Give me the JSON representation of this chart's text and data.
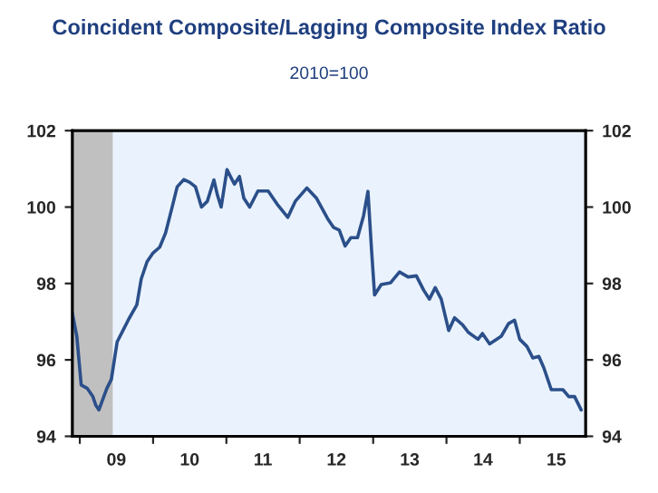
{
  "chart_data": {
    "type": "line",
    "title": "Coincident Composite/Lagging Composite Index Ratio",
    "subtitle": "2010=100",
    "series": [
      {
        "color": "#2b4f8a",
        "x": [
          "2008-11-25",
          "2008-12-17",
          "2009-01-08",
          "2009-02-06",
          "2009-03-07",
          "2009-03-22",
          "2009-04-06",
          "2009-04-20",
          "2009-05-16",
          "2009-06-07",
          "2009-07-06",
          "2009-08-04",
          "2009-09-02",
          "2009-10-12",
          "2009-11-03",
          "2009-12-02",
          "2010-01-01",
          "2010-02-03",
          "2010-03-04",
          "2010-04-02",
          "2010-05-01",
          "2010-06-03",
          "2010-07-02",
          "2010-07-31",
          "2010-08-30",
          "2010-09-28",
          "2010-10-31",
          "2010-11-18",
          "2010-12-06",
          "2011-01-04",
          "2011-01-26",
          "2011-02-10",
          "2011-03-07",
          "2011-03-29",
          "2011-04-27",
          "2011-06-07",
          "2011-07-28",
          "2011-09-10",
          "2011-11-03",
          "2011-12-10",
          "2012-02-06",
          "2012-03-25",
          "2012-05-19",
          "2012-06-17",
          "2012-07-16",
          "2012-08-14",
          "2012-09-12",
          "2012-10-15",
          "2012-11-14",
          "2012-12-06",
          "2012-12-24",
          "2013-01-08",
          "2013-02-10",
          "2013-03-29",
          "2013-05-12",
          "2013-06-24",
          "2013-08-04",
          "2013-09-10",
          "2013-10-08",
          "2013-11-06",
          "2013-12-06",
          "2014-01-12",
          "2014-02-10",
          "2014-03-22",
          "2014-04-20",
          "2014-06-07",
          "2014-06-29",
          "2014-08-04",
          "2014-10-01",
          "2014-11-06",
          "2014-12-06",
          "2015-01-01",
          "2015-02-06",
          "2015-03-07",
          "2015-04-06",
          "2015-05-01",
          "2015-06-07",
          "2015-08-04",
          "2015-09-02",
          "2015-10-01",
          "2015-11-03"
        ],
        "values": [
          97.22,
          96.62,
          95.34,
          95.26,
          95.04,
          94.81,
          94.69,
          94.89,
          95.26,
          95.49,
          96.47,
          96.77,
          97.07,
          97.44,
          98.12,
          98.57,
          98.8,
          98.95,
          99.32,
          99.92,
          100.53,
          100.72,
          100.65,
          100.53,
          100.0,
          100.15,
          100.71,
          100.3,
          100.0,
          100.98,
          100.75,
          100.6,
          100.8,
          100.23,
          100.0,
          100.42,
          100.42,
          100.08,
          99.73,
          100.15,
          100.5,
          100.23,
          99.7,
          99.47,
          99.4,
          98.98,
          99.2,
          99.2,
          99.77,
          100.41,
          98.87,
          97.7,
          97.97,
          98.02,
          98.3,
          98.17,
          98.2,
          97.82,
          97.59,
          97.89,
          97.59,
          96.77,
          97.1,
          96.92,
          96.72,
          96.54,
          96.69,
          96.42,
          96.62,
          96.95,
          97.04,
          96.54,
          96.35,
          96.05,
          96.09,
          95.79,
          95.22,
          95.22,
          95.04,
          95.04,
          94.69
        ]
      }
    ],
    "xlim": [
      "2008-11-25",
      "2015-11-25"
    ],
    "xticks": [
      {
        "value": "2009-01-01",
        "label": null
      },
      {
        "value": "2009-07-02",
        "label": "09"
      },
      {
        "value": "2010-01-01",
        "label": null
      },
      {
        "value": "2010-07-02",
        "label": "10"
      },
      {
        "value": "2011-01-01",
        "label": null
      },
      {
        "value": "2011-07-02",
        "label": "11"
      },
      {
        "value": "2012-01-01",
        "label": null
      },
      {
        "value": "2012-07-02",
        "label": "12"
      },
      {
        "value": "2013-01-01",
        "label": null
      },
      {
        "value": "2013-07-02",
        "label": "13"
      },
      {
        "value": "2014-01-01",
        "label": null
      },
      {
        "value": "2014-07-02",
        "label": "14"
      },
      {
        "value": "2015-01-01",
        "label": null
      },
      {
        "value": "2015-07-02",
        "label": "15"
      }
    ],
    "ylim": [
      94,
      102
    ],
    "yticks": [
      94,
      96,
      98,
      100,
      102
    ],
    "y2lim": [
      94,
      102
    ],
    "y2ticks": [
      94,
      96,
      98,
      100,
      102
    ],
    "bands": [
      {
        "axis": "x",
        "from": "2008-11-25",
        "to": "2009-06-14",
        "color": "#c0c0c0"
      }
    ],
    "grid": false,
    "legend": false,
    "marker": "none",
    "line_style": "solid"
  }
}
